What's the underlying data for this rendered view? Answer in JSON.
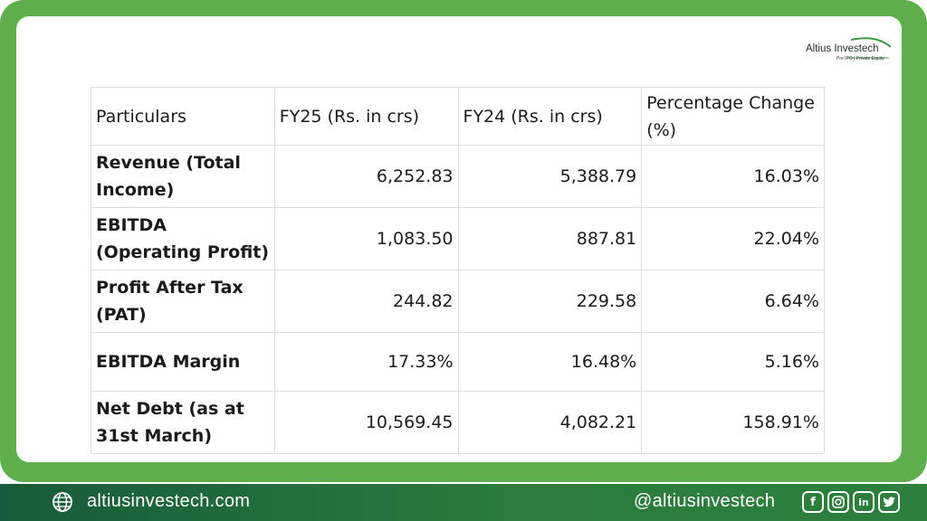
{
  "colors": {
    "frame": "#5fae4c",
    "footer_dark": "#175b3a",
    "footer_light": "#2c7f3d",
    "text": "#1b1b1b"
  },
  "logo": {
    "name": "Altius Investech",
    "tagline": "Pre IPO | Private Equity"
  },
  "table": {
    "headers": [
      "Particulars",
      "FY25 (Rs. in crs)",
      "FY24 (Rs. in crs)",
      "Percentage Change (%)"
    ],
    "rows": [
      {
        "particular": "Revenue (Total Income)",
        "fy25": "6,252.83",
        "fy24": "5,388.79",
        "change": "16.03%"
      },
      {
        "particular": "EBITDA (Operating Profit)",
        "fy25": "1,083.50",
        "fy24": "887.81",
        "change": "22.04%"
      },
      {
        "particular": "Profit After Tax (PAT)",
        "fy25": "244.82",
        "fy24": "229.58",
        "change": "6.64%"
      },
      {
        "particular": "EBITDA Margin",
        "fy25": "17.33%",
        "fy24": "16.48%",
        "change": "5.16%"
      },
      {
        "particular": "Net Debt (as at 31st March)",
        "fy25": "10,569.45",
        "fy24": "4,082.21",
        "change": "158.91%"
      }
    ]
  },
  "footer": {
    "website": "altiusinvestech.com",
    "handle": "@altiusinvestech",
    "icons": [
      "globe-icon",
      "facebook-icon",
      "instagram-icon",
      "linkedin-icon",
      "twitter-icon"
    ]
  }
}
